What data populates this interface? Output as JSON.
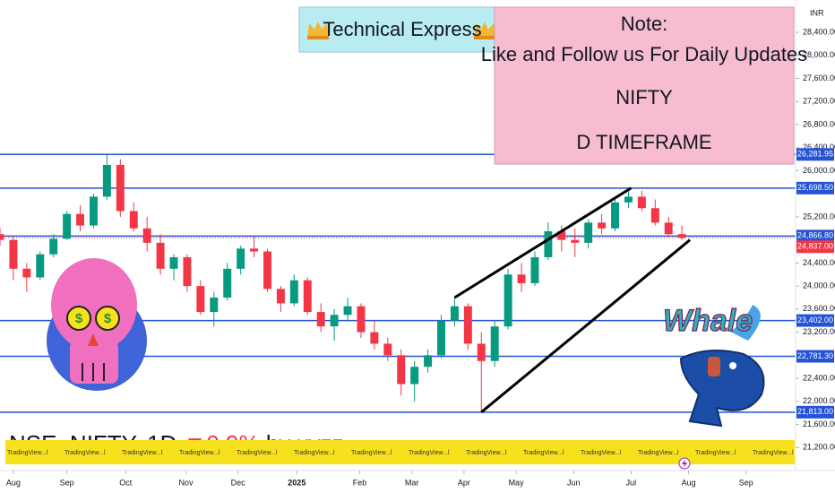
{
  "chart_data": {
    "type": "candlestick",
    "title": "Technical Express",
    "note": [
      "Note:",
      "Like and Follow us For Daily Updates",
      "NIFTY",
      "D TIMEFRAME"
    ],
    "currency": "INR",
    "watermark": {
      "symbol": "NSE_NIFTY, 1D",
      "change": "▼0.9%",
      "author": "by xyzz",
      "strip_text": "TradingView...l"
    },
    "whale_text": "Whale",
    "up_color": "#089981",
    "down_color": "#f23645",
    "level_color": "#2454d6",
    "x": [
      -1,
      0,
      1,
      2,
      3,
      4,
      5,
      6,
      7,
      8,
      9,
      10,
      11,
      12,
      13,
      14,
      15,
      16,
      17,
      18,
      19,
      20,
      21,
      22,
      23,
      24,
      25,
      26,
      27,
      28,
      29,
      30,
      31,
      32,
      33,
      34,
      35,
      36,
      37,
      38,
      39,
      40,
      41,
      42,
      43,
      44,
      45,
      46,
      47,
      48,
      49,
      50
    ],
    "open": [
      24900,
      24800,
      24300,
      24150,
      24550,
      24820,
      25250,
      25050,
      25550,
      26100,
      25300,
      25000,
      24750,
      24300,
      24500,
      24000,
      23550,
      23800,
      24300,
      24650,
      24600,
      23950,
      23700,
      24100,
      23550,
      23300,
      23500,
      23650,
      23200,
      23000,
      22800,
      22300,
      22600,
      22800,
      23400,
      23650,
      23000,
      22700,
      23300,
      24200,
      24050,
      24500,
      24950,
      24800,
      24750,
      25100,
      25000,
      25450,
      25550,
      25350,
      25100,
      24900
    ],
    "high": [
      25000,
      24850,
      24400,
      24600,
      24900,
      25300,
      25400,
      25600,
      26281,
      26200,
      25450,
      25200,
      24900,
      24550,
      24550,
      24100,
      23900,
      24400,
      24700,
      24850,
      24650,
      24000,
      24200,
      24150,
      23700,
      23600,
      23800,
      23700,
      23400,
      23100,
      22900,
      22700,
      22900,
      23500,
      23800,
      23700,
      23200,
      23400,
      24300,
      24400,
      24600,
      25100,
      25050,
      25000,
      25150,
      25250,
      25500,
      25700,
      25650,
      25500,
      25200,
      25050
    ],
    "low": [
      24700,
      24100,
      23900,
      24100,
      24500,
      24800,
      24950,
      25000,
      25500,
      25200,
      24950,
      24600,
      24200,
      24100,
      23900,
      23500,
      23300,
      23750,
      24200,
      24500,
      23900,
      23550,
      23650,
      23500,
      23200,
      23050,
      23400,
      23100,
      22900,
      22700,
      22100,
      22000,
      22500,
      22750,
      23300,
      22900,
      21813,
      22600,
      23250,
      23900,
      24000,
      24450,
      24600,
      24500,
      24650,
      24900,
      24950,
      25350,
      25300,
      25050,
      24850,
      24800
    ],
    "close": [
      24800,
      24300,
      24150,
      24550,
      24820,
      25250,
      25050,
      25550,
      26100,
      25300,
      25000,
      24750,
      24300,
      24500,
      24000,
      23550,
      23800,
      24300,
      24650,
      24600,
      23950,
      23700,
      24100,
      23550,
      23300,
      23500,
      23650,
      23200,
      23000,
      22800,
      22300,
      22600,
      22800,
      23400,
      23650,
      23000,
      22700,
      23300,
      24200,
      24050,
      24500,
      24950,
      24800,
      24750,
      25100,
      25000,
      25450,
      25550,
      25350,
      25100,
      24900,
      24837
    ],
    "xlim": [
      -1,
      58.5
    ],
    "xticks": [
      {
        "value": 0,
        "label": "Aug"
      },
      {
        "value": 4.0,
        "label": "Sep"
      },
      {
        "value": 8.4,
        "label": "Oct"
      },
      {
        "value": 12.9,
        "label": "Nov"
      },
      {
        "value": 16.8,
        "label": "Dec"
      },
      {
        "value": 21.2,
        "label": "2025"
      },
      {
        "value": 25.9,
        "label": "Feb"
      },
      {
        "value": 29.8,
        "label": "Mar"
      },
      {
        "value": 33.7,
        "label": "Apr"
      },
      {
        "value": 37.6,
        "label": "May"
      },
      {
        "value": 41.9,
        "label": "Jun"
      },
      {
        "value": 46.2,
        "label": "Jul"
      },
      {
        "value": 50.5,
        "label": "Aug"
      },
      {
        "value": 54.8,
        "label": "Sep"
      }
    ],
    "ylim": [
      20800,
      28960
    ],
    "yticks": [
      {
        "value": 28400,
        "label": "28,400.00"
      },
      {
        "value": 28000,
        "label": "28,000.00"
      },
      {
        "value": 27600,
        "label": "27,600.00"
      },
      {
        "value": 27200,
        "label": "27,200.00"
      },
      {
        "value": 26800,
        "label": "26,800.00"
      },
      {
        "value": 26400,
        "label": "26,400.00"
      },
      {
        "value": 26000,
        "label": "26,000.00"
      },
      {
        "value": 25200,
        "label": "25,200.00"
      },
      {
        "value": 24400,
        "label": "24,400.00"
      },
      {
        "value": 24000,
        "label": "24,000.00"
      },
      {
        "value": 23600,
        "label": "23,600.00"
      },
      {
        "value": 23200,
        "label": "23,200.00"
      },
      {
        "value": 22400,
        "label": "22,400.00"
      },
      {
        "value": 22000,
        "label": "22,000.00"
      },
      {
        "value": 21600,
        "label": "21,600.00"
      },
      {
        "value": 21200,
        "label": "21,200.00"
      }
    ],
    "levels": [
      {
        "value": 26281.95,
        "label": "26,281.95"
      },
      {
        "value": 25698.5,
        "label": "25,698.50"
      },
      {
        "value": 24866.8,
        "label": "24,866.80"
      },
      {
        "value": 23402,
        "label": "23,402.00"
      },
      {
        "value": 22781.3,
        "label": "22,781.30"
      },
      {
        "value": 21813,
        "label": "21,813.00"
      }
    ],
    "last_price": {
      "value": 24837,
      "label": "24,837.00"
    },
    "trendlines": [
      {
        "x": [
          33,
          46.2
        ],
        "y": [
          23800,
          25700
        ]
      },
      {
        "x": [
          35,
          50.6
        ],
        "y": [
          21813,
          24800
        ]
      }
    ],
    "grid": false
  }
}
